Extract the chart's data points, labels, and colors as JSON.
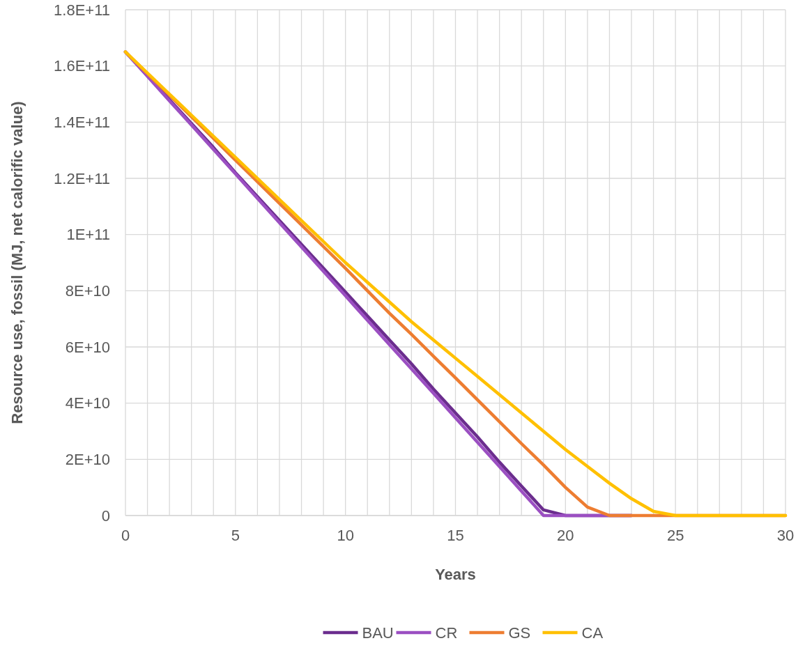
{
  "chart_data": {
    "type": "line",
    "xlabel": "Years",
    "ylabel": "Resource use, fossil (MJ, net calorific value)",
    "x": [
      0,
      1,
      2,
      3,
      4,
      5,
      6,
      7,
      8,
      9,
      10,
      11,
      12,
      13,
      14,
      15,
      16,
      17,
      18,
      19,
      20,
      21,
      22,
      23,
      24,
      25,
      26,
      27,
      28,
      29,
      30
    ],
    "series": [
      {
        "name": "BAU",
        "color": "#6b2d8e",
        "values": [
          165000000000.0,
          156500000000.0,
          148000000000.0,
          139500000000.0,
          131000000000.0,
          122000000000.0,
          113500000000.0,
          105000000000.0,
          96500000000.0,
          88000000000.0,
          79500000000.0,
          71000000000.0,
          62500000000.0,
          54000000000.0,
          45000000000.0,
          36500000000.0,
          28000000000.0,
          19000000000.0,
          10500000000.0,
          2000000000.0,
          0,
          0,
          0,
          0,
          null,
          null,
          null,
          null,
          null,
          null,
          null
        ]
      },
      {
        "name": "CR",
        "color": "#9b4fc2",
        "values": [
          165000000000.0,
          156300000000.0,
          147600000000.0,
          139000000000.0,
          130300000000.0,
          121600000000.0,
          112900000000.0,
          104200000000.0,
          95600000000.0,
          86900000000.0,
          78200000000.0,
          69500000000.0,
          60800000000.0,
          52200000000.0,
          43500000000.0,
          34800000000.0,
          26100000000.0,
          17400000000.0,
          8700000000.0,
          0,
          0,
          0,
          0,
          0,
          null,
          null,
          null,
          null,
          null,
          null,
          null
        ]
      },
      {
        "name": "GS",
        "color": "#ed7d31",
        "values": [
          165000000000.0,
          157300000000.0,
          149600000000.0,
          141900000000.0,
          134200000000.0,
          126500000000.0,
          118800000000.0,
          111100000000.0,
          103400000000.0,
          95700000000.0,
          88000000000.0,
          80000000000.0,
          72000000000.0,
          64500000000.0,
          56700000000.0,
          49000000000.0,
          41200000000.0,
          33400000000.0,
          25600000000.0,
          18000000000.0,
          10000000000.0,
          3000000000.0,
          0,
          0,
          0,
          0,
          0,
          0,
          0,
          0,
          0
        ]
      },
      {
        "name": "CA",
        "color": "#ffc000",
        "values": [
          165000000000.0,
          157500000000.0,
          150000000000.0,
          142500000000.0,
          135000000000.0,
          127500000000.0,
          120000000000.0,
          112500000000.0,
          105000000000.0,
          97500000000.0,
          90000000000.0,
          83000000000.0,
          76000000000.0,
          69000000000.0,
          62500000000.0,
          56000000000.0,
          49500000000.0,
          43000000000.0,
          36500000000.0,
          30000000000.0,
          23500000000.0,
          17500000000.0,
          11500000000.0,
          6000000000.0,
          1500000000.0,
          0,
          0,
          0,
          0,
          0,
          0
        ]
      }
    ],
    "xlim": [
      0,
      30
    ],
    "xticks": [
      0,
      {
        "value": 1,
        "label": null
      },
      {
        "value": 2,
        "label": null
      },
      {
        "value": 3,
        "label": null
      },
      {
        "value": 4,
        "label": null
      },
      5,
      {
        "value": 6,
        "label": null
      },
      {
        "value": 7,
        "label": null
      },
      {
        "value": 8,
        "label": null
      },
      {
        "value": 9,
        "label": null
      },
      10,
      {
        "value": 11,
        "label": null
      },
      {
        "value": 12,
        "label": null
      },
      {
        "value": 13,
        "label": null
      },
      {
        "value": 14,
        "label": null
      },
      15,
      {
        "value": 16,
        "label": null
      },
      {
        "value": 17,
        "label": null
      },
      {
        "value": 18,
        "label": null
      },
      {
        "value": 19,
        "label": null
      },
      20,
      {
        "value": 21,
        "label": null
      },
      {
        "value": 22,
        "label": null
      },
      {
        "value": 23,
        "label": null
      },
      {
        "value": 24,
        "label": null
      },
      25,
      {
        "value": 26,
        "label": null
      },
      {
        "value": 27,
        "label": null
      },
      {
        "value": 28,
        "label": null
      },
      {
        "value": 29,
        "label": null
      },
      30
    ],
    "ylim": [
      0,
      180000000000.0
    ],
    "yticks": [
      0,
      {
        "value": 20000000000.0,
        "label": "2E+10"
      },
      {
        "value": 40000000000.0,
        "label": "4E+10"
      },
      {
        "value": 60000000000.0,
        "label": "6E+10"
      },
      {
        "value": 80000000000.0,
        "label": "8E+10"
      },
      {
        "value": 100000000000.0,
        "label": "1E+11"
      },
      {
        "value": 120000000000.0,
        "label": "1.2E+11"
      },
      {
        "value": 140000000000.0,
        "label": "1.4E+11"
      },
      {
        "value": 160000000000.0,
        "label": "1.6E+11"
      },
      {
        "value": 180000000000.0,
        "label": "1.8E+11"
      }
    ],
    "grid": true,
    "legend": "bottom",
    "marker": "none",
    "line_style": "solid"
  }
}
